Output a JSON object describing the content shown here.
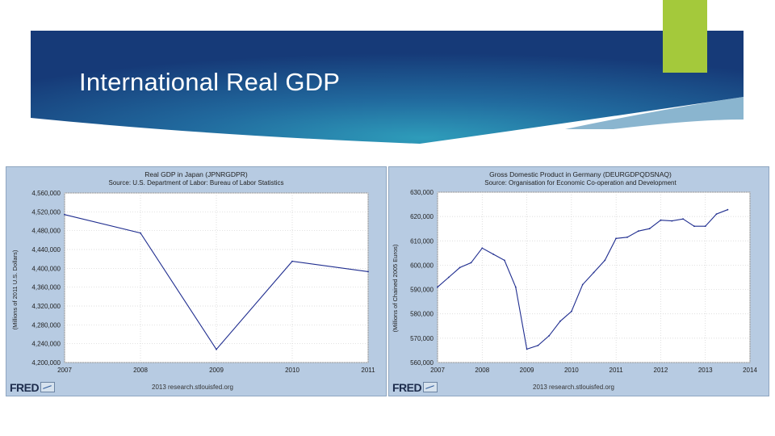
{
  "slide": {
    "title": "International Real GDP"
  },
  "colors": {
    "banner_dark": "#1a3d7a",
    "banner_light": "#2b8fb2",
    "accent": "#a4c93b",
    "panel_bg": "#b7cbe2",
    "series_line": "#1f2d8f"
  },
  "footer": {
    "logo": "FRED",
    "logo_icon": "fred-chart-icon",
    "copyright": "2013 research.stlouisfed.org"
  },
  "chart_data": [
    {
      "type": "line",
      "title": "Real GDP in Japan (JPNRGDPR)",
      "subtitle": "Source: U.S. Department of Labor: Bureau of Labor Statistics",
      "xlabel": "",
      "ylabel": "(Millions of 2011 U.S. Dollars)",
      "xlim": [
        2007,
        2011
      ],
      "ylim": [
        4200000,
        4560000
      ],
      "x_ticks": [
        "2007",
        "2008",
        "2009",
        "2010",
        "2011"
      ],
      "y_ticks": [
        "4,560,000",
        "4,520,000",
        "4,480,000",
        "4,440,000",
        "4,400,000",
        "4,360,000",
        "4,320,000",
        "4,280,000",
        "4,240,000",
        "4,200,000"
      ],
      "series": [
        {
          "name": "JPNRGDPR",
          "x": [
            2007,
            2008,
            2009,
            2010,
            2011
          ],
          "values": [
            4514000,
            4475000,
            4228000,
            4415000,
            4393000
          ]
        }
      ]
    },
    {
      "type": "line",
      "title": "Gross Domestic Product in Germany (DEURGDPQDSNAQ)",
      "subtitle": "Source: Organisation for Economic Co-operation and Development",
      "xlabel": "",
      "ylabel": "(Millions of Chained 2005 Euros)",
      "xlim": [
        2007,
        2014
      ],
      "ylim": [
        560000,
        630000
      ],
      "x_ticks": [
        "2007",
        "2008",
        "2009",
        "2010",
        "2011",
        "2012",
        "2013",
        "2014"
      ],
      "y_ticks": [
        "630,000",
        "620,000",
        "610,000",
        "600,000",
        "590,000",
        "580,000",
        "570,000",
        "560,000"
      ],
      "series": [
        {
          "name": "DEURGDPQDSNAQ",
          "x": [
            2007.0,
            2007.25,
            2007.5,
            2007.75,
            2008.0,
            2008.25,
            2008.5,
            2008.75,
            2009.0,
            2009.25,
            2009.5,
            2009.75,
            2010.0,
            2010.25,
            2010.5,
            2010.75,
            2011.0,
            2011.25,
            2011.5,
            2011.75,
            2012.0,
            2012.25,
            2012.5,
            2012.75,
            2013.0,
            2013.25,
            2013.5
          ],
          "values": [
            591000,
            595000,
            599000,
            601000,
            607000,
            604500,
            602000,
            591000,
            565500,
            567000,
            571000,
            577000,
            581000,
            592000,
            597000,
            602000,
            611000,
            611500,
            614000,
            615000,
            618500,
            618200,
            619000,
            616000,
            616000,
            621000,
            622800
          ]
        }
      ]
    }
  ]
}
